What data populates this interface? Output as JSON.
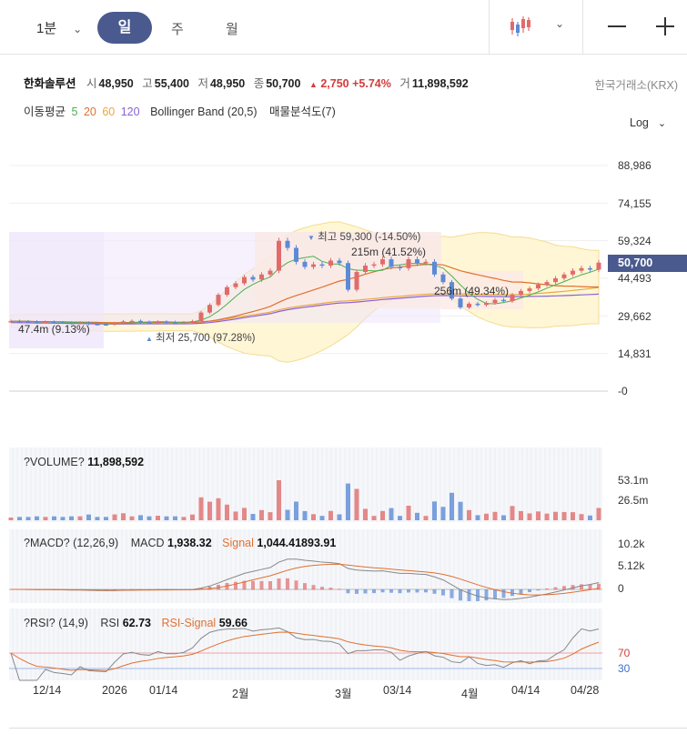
{
  "toolbar": {
    "interval": "1분",
    "tabs": [
      "일",
      "주",
      "월"
    ],
    "active_tab": "일"
  },
  "stock": {
    "name": "한화솔루션",
    "open_label": "시",
    "open": "48,950",
    "high_label": "고",
    "high": "55,400",
    "low_label": "저",
    "low": "48,950",
    "close_label": "종",
    "close": "50,700",
    "change": "2,750",
    "change_pct": "+5.74%",
    "volume_label": "거",
    "volume": "11,898,592",
    "exchange": "한국거래소(KRX)"
  },
  "indicators": {
    "ma_label": "이동평균",
    "ma5": "5",
    "ma20": "20",
    "ma60": "60",
    "ma120": "120",
    "bollinger": "Bollinger Band (20,5)",
    "volume_profile": "매물분석도(7)"
  },
  "scale": "Log",
  "colors": {
    "up": "#e06b6b",
    "down": "#5b8ad6",
    "accent": "#4a5a8e",
    "ma5": "#4caf50",
    "ma20": "#e07030",
    "ma60": "#e8a840",
    "ma120": "#8a62d6",
    "bollinger_fill": "#fff6d6",
    "bollinger_line": "#f3dc90",
    "profile_purple": "#efe6fb",
    "profile_pink": "#fbe8e4"
  },
  "price_panel": {
    "y_ticks": [
      "88,986",
      "74,155",
      "59,324",
      "44,493",
      "29,662",
      "14,831",
      "-0"
    ],
    "current_price": "50,700",
    "annotations": {
      "high": "최고 59,300 (-14.50%)",
      "low": "최저 25,700 (97.28%)",
      "vp1": "47.4m (9.13%)",
      "vp2": "215m (41.52%)",
      "vp3": "256m (49.34%)"
    }
  },
  "volume_panel": {
    "title": "?VOLUME?",
    "value": "11,898,592",
    "y_ticks": [
      "53.1m",
      "26.5m"
    ]
  },
  "macd_panel": {
    "title": "?MACD? (12,26,9)",
    "macd_label": "MACD",
    "macd_value": "1,938.32",
    "signal_label": "Signal",
    "signal_value": "1,044.41893.91",
    "y_ticks": [
      "10.2k",
      "5.12k",
      "0"
    ]
  },
  "rsi_panel": {
    "title": "?RSI? (14,9)",
    "rsi_label": "RSI",
    "rsi_value": "62.73",
    "signal_label": "RSI-Signal",
    "signal_value": "59.66",
    "y_ticks": [
      "70",
      "30"
    ]
  },
  "x_axis": [
    "12/14",
    "2026",
    "01/14",
    "2월",
    "3월",
    "03/14",
    "4월",
    "04/14",
    "04/28"
  ],
  "chart_data": {
    "type": "candlestick",
    "series_close_approx": [
      27600,
      27500,
      27400,
      27200,
      27300,
      27100,
      27000,
      26800,
      27000,
      26500,
      26400,
      26300,
      26800,
      27500,
      27700,
      27300,
      27100,
      27400,
      27200,
      27000,
      27100,
      27600,
      31000,
      34000,
      38000,
      41000,
      42500,
      45000,
      44000,
      46000,
      47500,
      59300,
      56500,
      51000,
      49000,
      50000,
      49500,
      51500,
      50500,
      40000,
      47000,
      49500,
      50000,
      52000,
      49000,
      48500,
      52000,
      50500,
      51000,
      46000,
      43000,
      36500,
      33000,
      34500,
      34000,
      34800,
      36000,
      35500,
      38000,
      39500,
      40500,
      42000,
      43000,
      44500,
      46000,
      47500,
      48500,
      47900,
      50700
    ],
    "y_ticks": [
      88986,
      74155,
      59324,
      44493,
      29662,
      14831,
      0
    ],
    "current": 50700,
    "high": 59300,
    "low": 25700
  }
}
